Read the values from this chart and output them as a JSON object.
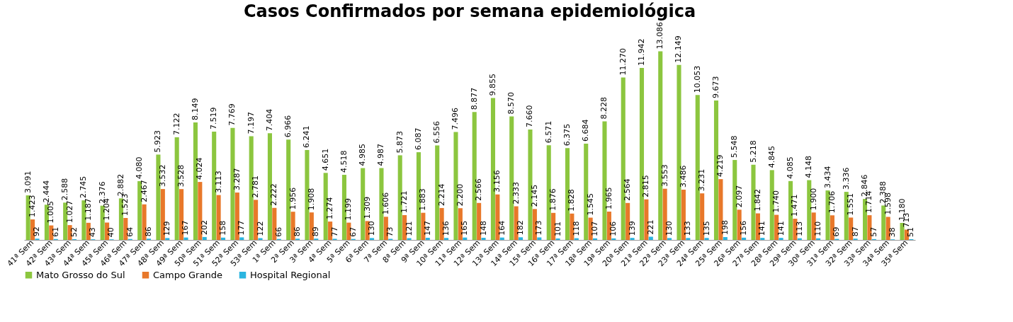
{
  "chart_data": {
    "type": "bar",
    "title": "Casos Confirmados por semana epidemiológica",
    "categories": [
      "41ª Sem",
      "42ª Sem",
      "43ª Sem",
      "44ª Sem",
      "45ª Sem",
      "46ª Sem",
      "47ª Sem",
      "48ª Sem",
      "49ª Sem",
      "50ª Sem",
      "51ª Sem",
      "52ª Sem",
      "53ª Sem",
      "1ª Sem",
      "2ª Sem",
      "3ª Sem",
      "4ª Sem",
      "5ª Sem",
      "6ª Sem",
      "7ª Sem",
      "8ª Sem",
      "9ª Sem",
      "10ª Sem",
      "11ª Sem",
      "12ª Sem",
      "13ª Sem",
      "14ª Sem",
      "15ª Sem",
      "16ª Sem",
      "17ª Sem",
      "18ª Sem",
      "19ª Sem",
      "20ª Sem",
      "21ª Sem",
      "22ª Sem",
      "23ª Sem",
      "24ª Sem",
      "25ª Sem",
      "26ª Sem",
      "27ª Sem",
      "28ª Sem",
      "29ª Sem",
      "30ª Sem",
      "31ª Sem",
      "32ª Sem",
      "33ª Sem",
      "34ª Sem",
      "35ª Sem"
    ],
    "series": [
      {
        "name": "Mato Grosso do Sul",
        "color": "#8cc63f",
        "values": [
          3091,
          2444,
          2588,
          2745,
          2376,
          2882,
          4080,
          5923,
          7122,
          8149,
          7519,
          7769,
          7197,
          7404,
          6966,
          6241,
          4651,
          4518,
          4985,
          4987,
          5873,
          6087,
          6556,
          7496,
          8877,
          9855,
          8570,
          7660,
          6571,
          6375,
          6684,
          8228,
          11270,
          11942,
          13086,
          12149,
          10053,
          9673,
          5548,
          5218,
          4845,
          4085,
          4148,
          3434,
          3336,
          2846,
          2388,
          1180
        ],
        "value_labels": [
          "3.091",
          "2.444",
          "2.588",
          "2.745",
          "2.376",
          "2.882",
          "4.080",
          "5.923",
          "7.122",
          "8.149",
          "7.519",
          "7.769",
          "7.197",
          "7.404",
          "6.966",
          "6.241",
          "4.651",
          "4.518",
          "4.985",
          "4.987",
          "5.873",
          "6.087",
          "6.556",
          "7.496",
          "8.877",
          "9.855",
          "8.570",
          "7.660",
          "6.571",
          "6.375",
          "6.684",
          "8.228",
          "11.270",
          "11.942",
          "13.086",
          "12.149",
          "10.053",
          "9.673",
          "5.548",
          "5.218",
          "4.845",
          "4.085",
          "4.148",
          "3.434",
          "3.336",
          "2.846",
          "2.388",
          "1.180"
        ]
      },
      {
        "name": "Campo Grande",
        "color": "#e8782a",
        "values": [
          1423,
          1005,
          1027,
          1187,
          1204,
          1523,
          2467,
          3532,
          3528,
          4024,
          3113,
          3287,
          2781,
          2222,
          1956,
          1908,
          1274,
          1199,
          1309,
          1606,
          1721,
          1883,
          2214,
          2200,
          2566,
          3156,
          2333,
          2145,
          1876,
          1828,
          1545,
          1965,
          2564,
          2815,
          3553,
          3486,
          3231,
          4219,
          2097,
          1842,
          1740,
          1471,
          1900,
          1706,
          1551,
          1714,
          1598,
          713
        ],
        "value_labels": [
          "1.423",
          "1.005",
          "1.027",
          "1.187",
          "1.204",
          "1.523",
          "2.467",
          "3.532",
          "3.528",
          "4.024",
          "3.113",
          "3.287",
          "2.781",
          "2.222",
          "1.956",
          "1.908",
          "1.274",
          "1.199",
          "1.309",
          "1.606",
          "1.721",
          "1.883",
          "2.214",
          "2.200",
          "2.566",
          "3.156",
          "2.333",
          "2.145",
          "1.876",
          "1.828",
          "1.545",
          "1.965",
          "2.564",
          "2.815",
          "3.553",
          "3.486",
          "3.231",
          "4.219",
          "2.097",
          "1.842",
          "1.740",
          "1.471",
          "1.900",
          "1.706",
          "1.551",
          "1.714",
          "1.598",
          "713"
        ]
      },
      {
        "name": "Hospital Regional",
        "color": "#2bb5e0",
        "values": [
          92,
          61,
          52,
          43,
          40,
          64,
          86,
          129,
          167,
          202,
          158,
          177,
          122,
          66,
          86,
          89,
          77,
          67,
          130,
          73,
          121,
          147,
          136,
          165,
          148,
          164,
          182,
          173,
          101,
          118,
          107,
          106,
          139,
          221,
          130,
          133,
          135,
          198,
          156,
          141,
          141,
          113,
          110,
          69,
          87,
          57,
          38,
          51
        ],
        "value_labels": [
          "92",
          "61",
          "52",
          "43",
          "40",
          "64",
          "86",
          "129",
          "167",
          "202",
          "158",
          "177",
          "122",
          "66",
          "86",
          "89",
          "77",
          "67",
          "130",
          "73",
          "121",
          "147",
          "136",
          "165",
          "148",
          "164",
          "182",
          "173",
          "101",
          "118",
          "107",
          "106",
          "139",
          "221",
          "130",
          "133",
          "135",
          "198",
          "156",
          "141",
          "141",
          "113",
          "110",
          "69",
          "87",
          "57",
          "38",
          "51"
        ]
      }
    ],
    "legend": "bottom",
    "tick_labels": "x",
    "grid": false
  }
}
